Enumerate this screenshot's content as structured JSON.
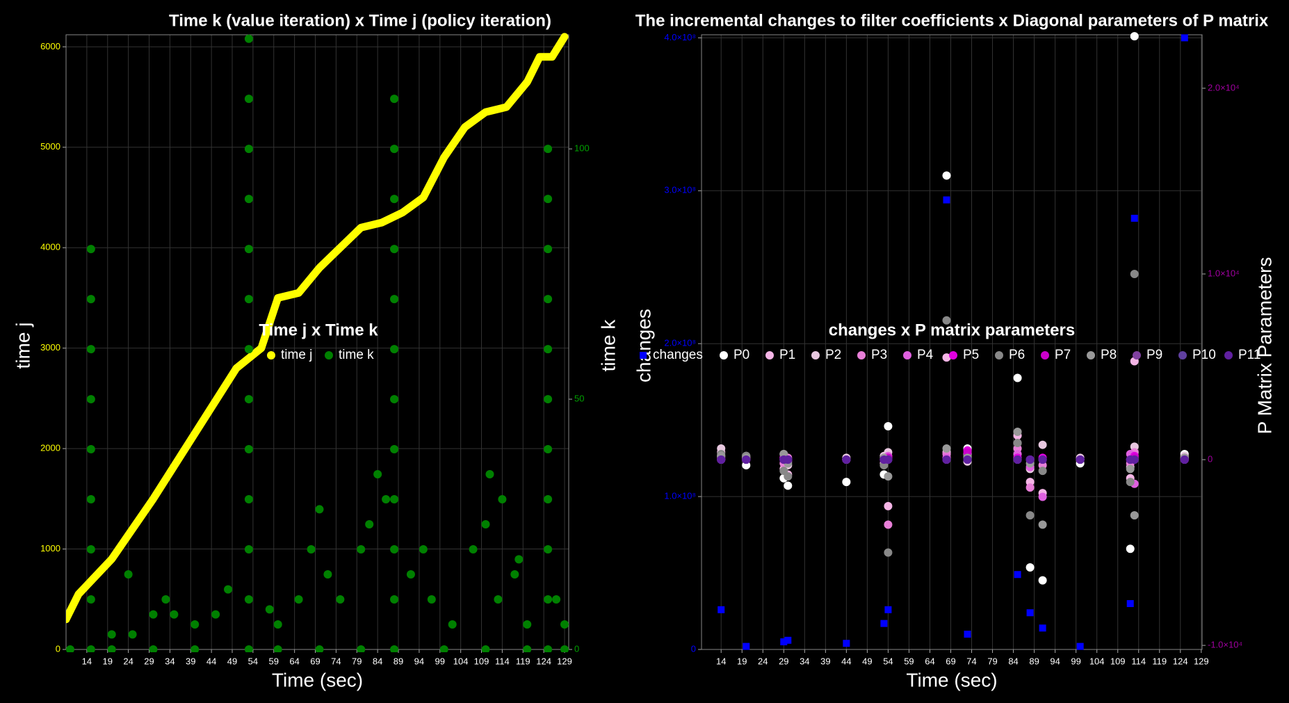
{
  "chart_data": [
    {
      "type": "scatter",
      "title": "Time k (value iteration) x Time j (policy iteration)",
      "x_label": "Time (sec)",
      "y_label": "time j",
      "y2_label": "time k",
      "legend_title": "Time j x Time k",
      "xlim": [
        9,
        130
      ],
      "xticks": [
        14,
        19,
        24,
        29,
        34,
        39,
        44,
        49,
        54,
        59,
        64,
        69,
        74,
        79,
        84,
        89,
        94,
        99,
        104,
        109,
        114,
        119,
        124,
        129
      ],
      "ylim": [
        0,
        6120
      ],
      "yticks": [
        0,
        1000,
        2000,
        3000,
        4000,
        5000,
        6000
      ],
      "y_color": "#ffff00",
      "y2lim": [
        0,
        122.8
      ],
      "y2ticks": [
        0,
        50,
        100
      ],
      "y2_color": "#00a000",
      "grid": true,
      "series": [
        {
          "name": "time j",
          "color": "#ffff00",
          "draw": "line",
          "x": [
            9,
            12,
            20,
            30,
            40,
            50,
            53,
            56,
            60,
            65,
            70,
            75,
            80,
            85,
            90,
            95,
            100,
            105,
            110,
            115,
            120,
            123,
            126,
            129
          ],
          "values": [
            300,
            550,
            900,
            1500,
            2150,
            2800,
            2900,
            3000,
            3500,
            3550,
            3800,
            4000,
            4200,
            4250,
            4350,
            4500,
            4900,
            5200,
            5350,
            5400,
            5650,
            5900,
            5900,
            6100
          ]
        },
        {
          "name": "time k",
          "color": "#008000",
          "axis": "y2",
          "x": [
            15,
            15,
            15,
            15,
            15,
            15,
            15,
            15,
            15,
            53,
            53,
            53,
            53,
            53,
            53,
            53,
            53,
            53,
            53,
            53,
            53,
            53,
            88,
            88,
            88,
            88,
            88,
            88,
            88,
            88,
            88,
            88,
            88,
            88,
            125,
            125,
            125,
            125,
            125,
            125,
            125,
            125,
            125,
            125,
            125,
            20,
            25,
            30,
            35,
            40,
            45,
            60,
            65,
            68,
            72,
            75,
            80,
            84,
            86,
            92,
            97,
            102,
            107,
            110,
            113,
            117,
            120,
            127,
            129,
            24,
            33,
            48,
            58,
            70,
            82,
            95,
            111,
            114,
            118,
            10,
            20,
            30,
            40,
            60,
            70,
            80,
            100,
            110,
            120,
            129
          ],
          "values": [
            0,
            10,
            20,
            30,
            40,
            50,
            60,
            70,
            80,
            0,
            10,
            20,
            30,
            40,
            50,
            60,
            70,
            80,
            90,
            100,
            110,
            122,
            0,
            10,
            20,
            30,
            40,
            50,
            60,
            70,
            80,
            90,
            100,
            110,
            0,
            10,
            20,
            30,
            40,
            50,
            60,
            70,
            80,
            90,
            100,
            3,
            3,
            7,
            7,
            5,
            7,
            5,
            10,
            20,
            15,
            10,
            20,
            35,
            30,
            15,
            10,
            5,
            20,
            25,
            10,
            15,
            5,
            10,
            5,
            15,
            10,
            12,
            8,
            28,
            25,
            20,
            35,
            30,
            18,
            0,
            0,
            0,
            0,
            0,
            0,
            0,
            0,
            0,
            0,
            0
          ]
        }
      ]
    },
    {
      "type": "scatter",
      "title": "The incremental changes to filter coefficients x Diagonal parameters of P matrix",
      "x_label": "Time (sec)",
      "y_label": "changes",
      "y2_label": "P Matrix Parameters",
      "legend_title": "changes x P matrix parameters",
      "xlim": [
        9.3,
        129.2
      ],
      "xticks": [
        14,
        19,
        24,
        29,
        34,
        39,
        44,
        49,
        54,
        59,
        64,
        69,
        74,
        79,
        84,
        89,
        94,
        99,
        104,
        109,
        114,
        119,
        124,
        129
      ],
      "ylim": [
        0,
        402000000
      ],
      "yticks": [
        0,
        {
          "value": 100000000,
          "label": "1.0×10⁸"
        },
        {
          "value": 200000000,
          "label": "2.0×10⁸"
        },
        {
          "value": 300000000,
          "label": "3.0×10⁸"
        },
        {
          "value": 400000000,
          "label": "4.0×10⁸"
        }
      ],
      "y_color": "#0000ff",
      "y2lim": [
        -10220,
        22880
      ],
      "y2ticks": [
        {
          "value": -10000,
          "label": "-1.0×10⁴"
        },
        0,
        {
          "value": 10000,
          "label": "1.0×10⁴"
        },
        {
          "value": 20000,
          "label": "2.0×10⁴"
        }
      ],
      "y2_color": "#a000a0",
      "grid": true,
      "x": [
        14,
        20,
        29,
        30,
        44,
        53,
        54,
        68,
        73,
        85,
        88,
        91,
        100,
        112,
        113,
        125
      ],
      "series": [
        {
          "name": "changes",
          "color": "#0000ff",
          "marker": "square",
          "values": [
            26000000,
            2000000,
            5000000,
            6000000,
            4000000,
            17000000,
            26000000,
            294000000,
            10000000,
            49000000,
            24000000,
            14000000,
            2000000,
            30000000,
            282000000,
            400000000
          ]
        },
        {
          "name": "P0",
          "color": "#ffffff",
          "axis": "y2",
          "values": [
            200,
            -300,
            -1000,
            -1400,
            -1200,
            -800,
            1800,
            15300,
            600,
            4400,
            -5800,
            -6500,
            -200,
            -4800,
            22800,
            300
          ]
        },
        {
          "name": "P1",
          "color": "#f5b5e6",
          "axis": "y2",
          "values": [
            400,
            100,
            -500,
            -800,
            0,
            -200,
            -2500,
            5500,
            300,
            1300,
            -1200,
            -1800,
            0,
            -1000,
            5300,
            100
          ]
        },
        {
          "name": "P2",
          "color": "#e8c8e0",
          "axis": "y2",
          "values": [
            600,
            200,
            300,
            -300,
            100,
            200,
            400,
            400,
            -100,
            900,
            -500,
            800,
            100,
            -400,
            700,
            200
          ]
        },
        {
          "name": "P3",
          "color": "#e87fd8",
          "axis": "y2",
          "values": [
            100,
            0,
            -200,
            100,
            0,
            100,
            -3500,
            300,
            200,
            600,
            -1500,
            -300,
            0,
            -200,
            400,
            0
          ]
        },
        {
          "name": "P4",
          "color": "#e060e0",
          "axis": "y2",
          "values": [
            0,
            100,
            100,
            -100,
            0,
            0,
            200,
            100,
            100,
            300,
            -400,
            -2000,
            0,
            300,
            -1300,
            100
          ]
        },
        {
          "name": "P5",
          "color": "#e000e0",
          "axis": "y2",
          "values": [
            0,
            0,
            100,
            0,
            0,
            0,
            100,
            0,
            500,
            100,
            0,
            100,
            0,
            0,
            200,
            0
          ]
        },
        {
          "name": "P6",
          "color": "#888888",
          "axis": "y2",
          "values": [
            300,
            200,
            -600,
            -900,
            0,
            -300,
            -5000,
            7500,
            200,
            900,
            -3000,
            -600,
            0,
            -1200,
            10000,
            100
          ]
        },
        {
          "name": "P7",
          "color": "#cc00cc",
          "axis": "y2",
          "values": [
            0,
            0,
            0,
            0,
            0,
            0,
            100,
            0,
            400,
            0,
            0,
            0,
            0,
            0,
            100,
            0
          ]
        },
        {
          "name": "P8",
          "color": "#999999",
          "axis": "y2",
          "values": [
            200,
            100,
            300,
            -200,
            0,
            100,
            -900,
            600,
            100,
            1500,
            -200,
            -3500,
            0,
            -500,
            -3000,
            100
          ]
        },
        {
          "name": "P9",
          "color": "#8040a0",
          "axis": "y2",
          "values": [
            0,
            0,
            0,
            0,
            0,
            0,
            0,
            0,
            0,
            0,
            0,
            0,
            0,
            0,
            0,
            0
          ]
        },
        {
          "name": "P10",
          "color": "#6040a0",
          "axis": "y2",
          "values": [
            0,
            0,
            0,
            0,
            0,
            0,
            0,
            0,
            0,
            0,
            0,
            0,
            0,
            0,
            0,
            0
          ]
        },
        {
          "name": "P11",
          "color": "#6020a0",
          "axis": "y2",
          "values": [
            0,
            0,
            0,
            0,
            0,
            0,
            0,
            0,
            0,
            0,
            0,
            0,
            0,
            0,
            0,
            0
          ]
        }
      ]
    }
  ]
}
